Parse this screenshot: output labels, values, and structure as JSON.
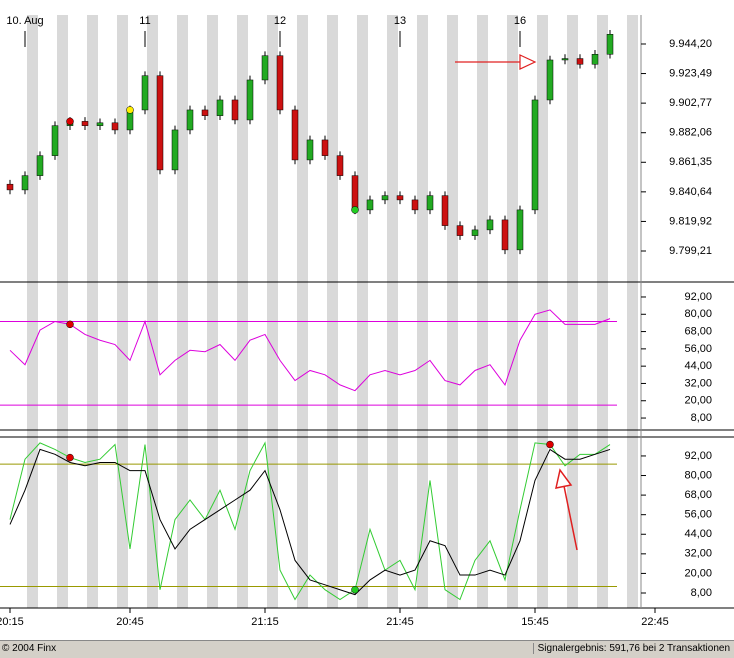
{
  "chart_data": [
    {
      "type": "candlestick",
      "date_labels": [
        null,
        "10. Aug",
        null,
        null,
        null,
        null,
        null,
        null,
        null,
        "11",
        null,
        null,
        null,
        null,
        null,
        null,
        null,
        null,
        "12",
        null,
        null,
        null,
        null,
        null,
        null,
        null,
        "13",
        null,
        null,
        null,
        null,
        null,
        null,
        null,
        "16",
        null,
        null,
        null,
        null,
        null,
        null,
        null,
        null,
        null
      ],
      "open": [
        9846,
        9842,
        9852,
        9866,
        9887,
        9890,
        9887,
        9889,
        9884,
        9898,
        9922,
        9856,
        9884,
        9898,
        9894,
        9905,
        9891,
        9919,
        9936,
        9898,
        9863,
        9877,
        9866,
        9852,
        9828,
        9835,
        9838,
        9835,
        9828,
        9838,
        9817,
        9810,
        9814,
        9821,
        9800,
        9828,
        9905,
        9933,
        9934,
        9930,
        9937,
        null,
        null,
        null
      ],
      "high": [
        9849,
        9855,
        9869,
        9890,
        9893,
        9893,
        9892,
        9892,
        9901,
        9925,
        9925,
        9887,
        9901,
        9901,
        9908,
        9908,
        9922,
        9939,
        9939,
        9901,
        9880,
        9880,
        9869,
        9855,
        9838,
        9841,
        9841,
        9838,
        9841,
        9841,
        9820,
        9817,
        9824,
        9824,
        9831,
        9908,
        9936,
        9937,
        9937,
        9940,
        9954,
        null,
        null,
        null
      ],
      "low": [
        9839,
        9839,
        9849,
        9863,
        9884,
        9884,
        9884,
        9881,
        9881,
        9895,
        9853,
        9853,
        9881,
        9891,
        9891,
        9888,
        9888,
        9916,
        9895,
        9860,
        9860,
        9863,
        9849,
        9825,
        9825,
        9832,
        9832,
        9825,
        9825,
        9814,
        9807,
        9807,
        9811,
        9797,
        9797,
        9825,
        9902,
        9930,
        9927,
        9927,
        9934,
        null,
        null,
        null
      ],
      "close": [
        9842,
        9852,
        9866,
        9887,
        9890,
        9887,
        9889,
        9884,
        9898,
        9922,
        9856,
        9884,
        9898,
        9894,
        9905,
        9891,
        9919,
        9936,
        9898,
        9863,
        9877,
        9866,
        9852,
        9828,
        9835,
        9838,
        9835,
        9828,
        9838,
        9817,
        9810,
        9814,
        9821,
        9800,
        9828,
        9905,
        9933,
        9934,
        9930,
        9937,
        9951,
        null,
        null,
        null
      ],
      "up_color": "#22aa22",
      "down_color": "#cc1111",
      "markers": [
        {
          "index": 4,
          "color": "#dd0000"
        },
        {
          "index": 8,
          "color": "#ffee00"
        },
        {
          "index": 23,
          "color": "#22cc22"
        }
      ],
      "ylim": [
        9777.5,
        9964.5
      ],
      "yticks": [
        {
          "value": 9944.2,
          "label": "9.944,20"
        },
        {
          "value": 9923.49,
          "label": "9.923,49"
        },
        {
          "value": 9902.77,
          "label": "9.902,77"
        },
        {
          "value": 9882.06,
          "label": "9.882,06"
        },
        {
          "value": 9861.35,
          "label": "9.861,35"
        },
        {
          "value": 9840.64,
          "label": "9.840,64"
        },
        {
          "value": 9819.92,
          "label": "9.819,92"
        },
        {
          "value": 9799.21,
          "label": "9.799,21"
        }
      ]
    },
    {
      "type": "line",
      "series": [
        {
          "color": "#dd00dd",
          "values": [
            55,
            45,
            69,
            75,
            73,
            66,
            62,
            59,
            48,
            75,
            38,
            48,
            55,
            54,
            59,
            48,
            62,
            66,
            48,
            34,
            41,
            38,
            31,
            27,
            38,
            41,
            38,
            41,
            48,
            34,
            31,
            41,
            45,
            31,
            62,
            80,
            83,
            73,
            73,
            73,
            77,
            null,
            null,
            null
          ]
        }
      ],
      "hlines": [
        75,
        17
      ],
      "hline_color": "#dd00dd",
      "markers": [
        {
          "index": 4,
          "color": "#dd0000"
        }
      ],
      "ylim": [
        -0.3,
        101.7
      ],
      "yticks": [
        {
          "value": 92,
          "label": "92,00"
        },
        {
          "value": 80,
          "label": "80,00"
        },
        {
          "value": 68,
          "label": "68,00"
        },
        {
          "value": 56,
          "label": "56,00"
        },
        {
          "value": 44,
          "label": "44,00"
        },
        {
          "value": 32,
          "label": "32,00"
        },
        {
          "value": 20,
          "label": "20,00"
        },
        {
          "value": 8,
          "label": "8,00"
        }
      ]
    },
    {
      "type": "line",
      "categories": [
        "20:15",
        null,
        null,
        null,
        null,
        null,
        null,
        null,
        "20:45",
        null,
        null,
        null,
        null,
        null,
        null,
        null,
        null,
        "21:15",
        null,
        null,
        null,
        null,
        null,
        null,
        null,
        null,
        "21:45",
        null,
        null,
        null,
        null,
        null,
        null,
        null,
        null,
        "15:45",
        null,
        null,
        null,
        null,
        null,
        null,
        null,
        "22:45"
      ],
      "series": [
        {
          "color": "#33cc33",
          "values": [
            53,
            90,
            100,
            96,
            91,
            88,
            90,
            99,
            35,
            99,
            10,
            53,
            65,
            53,
            71,
            47,
            83,
            100,
            22,
            4,
            19,
            10,
            4,
            10,
            47,
            22,
            28,
            10,
            77,
            10,
            4,
            28,
            40,
            16,
            59,
            100,
            99,
            86,
            93,
            93,
            99,
            null,
            null,
            null
          ]
        },
        {
          "color": "#000000",
          "values": [
            50,
            71,
            96,
            93,
            88,
            86,
            88,
            88,
            83,
            83,
            53,
            35,
            47,
            53,
            59,
            65,
            71,
            83,
            59,
            28,
            16,
            13,
            10,
            7,
            16,
            22,
            19,
            22,
            40,
            37,
            19,
            19,
            22,
            19,
            40,
            77,
            96,
            90,
            90,
            93,
            96,
            null,
            null,
            null
          ]
        }
      ],
      "hlines": [
        87,
        12
      ],
      "hline_color": "#999900",
      "markers": [
        {
          "index": 4,
          "color": "#dd0000"
        },
        {
          "index": 23,
          "color": "#22cc22"
        },
        {
          "index": 36,
          "color": "#dd0000"
        }
      ],
      "ylim": [
        -1.2,
        103
      ],
      "yticks": [
        {
          "value": 92,
          "label": "92,00"
        },
        {
          "value": 80,
          "label": "80,00"
        },
        {
          "value": 68,
          "label": "68,00"
        },
        {
          "value": 56,
          "label": "56,00"
        },
        {
          "value": 44,
          "label": "44,00"
        },
        {
          "value": 32,
          "label": "32,00"
        },
        {
          "value": 20,
          "label": "20,00"
        },
        {
          "value": 8,
          "label": "8,00"
        }
      ]
    }
  ],
  "footer": {
    "copyright": "© 2004 Finx",
    "result": "Signalergebnis: 591,76 bei 2 Transaktionen"
  }
}
